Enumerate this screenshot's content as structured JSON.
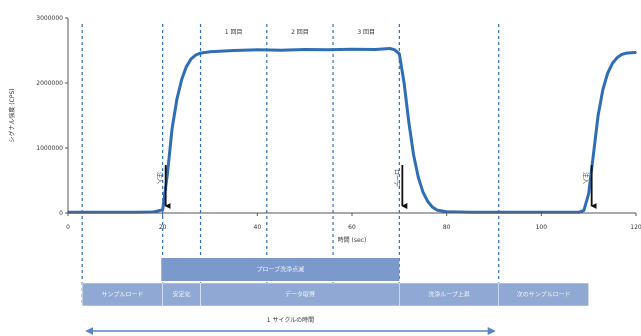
{
  "chart_data": {
    "type": "line",
    "title": "",
    "xlabel": "時間 (sec)",
    "ylabel": "シグナル強度 (CPS)",
    "xlim": [
      0,
      120
    ],
    "ylim": [
      0,
      3000000
    ],
    "x_ticks": [
      "0",
      "20",
      "40",
      "60",
      "80",
      "100",
      "120"
    ],
    "y_ticks": [
      "0",
      "1000000",
      "2000000",
      "3000000"
    ],
    "line_color": "#2f6db5",
    "dashed_markers_x": [
      3,
      20,
      28,
      42,
      56,
      70,
      91
    ],
    "read_labels": [
      {
        "text": "1 回目",
        "x": 35
      },
      {
        "text": "2 回目",
        "x": 49
      },
      {
        "text": "3 回目",
        "x": 63
      }
    ],
    "arrows": [
      {
        "label": "注入",
        "x": 20
      },
      {
        "label": "ローデ",
        "x": 70
      },
      {
        "label": "注入",
        "x": 110
      }
    ],
    "series": [
      {
        "points": [
          [
            0,
            10000
          ],
          [
            5,
            12000
          ],
          [
            10,
            11000
          ],
          [
            15,
            12000
          ],
          [
            18,
            15000
          ],
          [
            20,
            50000
          ],
          [
            21,
            600000
          ],
          [
            22,
            1300000
          ],
          [
            23,
            1750000
          ],
          [
            24,
            2050000
          ],
          [
            25,
            2250000
          ],
          [
            26,
            2370000
          ],
          [
            27,
            2430000
          ],
          [
            28,
            2460000
          ],
          [
            30,
            2480000
          ],
          [
            35,
            2500000
          ],
          [
            40,
            2510000
          ],
          [
            45,
            2505000
          ],
          [
            50,
            2515000
          ],
          [
            55,
            2510000
          ],
          [
            60,
            2520000
          ],
          [
            65,
            2515000
          ],
          [
            68,
            2530000
          ],
          [
            69,
            2510000
          ],
          [
            70,
            2450000
          ],
          [
            71,
            2000000
          ],
          [
            72,
            1400000
          ],
          [
            73,
            900000
          ],
          [
            74,
            550000
          ],
          [
            75,
            320000
          ],
          [
            76,
            180000
          ],
          [
            77,
            90000
          ],
          [
            78,
            45000
          ],
          [
            80,
            20000
          ],
          [
            85,
            12000
          ],
          [
            90,
            10000
          ],
          [
            95,
            10000
          ],
          [
            100,
            10000
          ],
          [
            105,
            10000
          ],
          [
            108,
            12000
          ],
          [
            109,
            40000
          ],
          [
            110,
            300000
          ],
          [
            111,
            900000
          ],
          [
            112,
            1500000
          ],
          [
            113,
            1900000
          ],
          [
            114,
            2150000
          ],
          [
            115,
            2300000
          ],
          [
            116,
            2390000
          ],
          [
            117,
            2440000
          ],
          [
            118,
            2460000
          ],
          [
            120,
            2470000
          ]
        ]
      }
    ],
    "phase_rows": [
      {
        "segments": [
          {
            "label": "サンプルロード",
            "from": 3,
            "to": 20
          },
          {
            "label": "安定化",
            "from": 20,
            "to": 28
          },
          {
            "label": "データ取得",
            "from": 28,
            "to": 70
          },
          {
            "label": "洗浄ループ上昇",
            "from": 70,
            "to": 91
          },
          {
            "label": "次のサンプルロード",
            "from": 91,
            "to": 110
          }
        ]
      }
    ],
    "upper_band": {
      "label": "プローブ洗浄点滅",
      "from": 14,
      "to": 70
    },
    "cycle": {
      "label": "1 サイクルの時間",
      "from": 3,
      "to": 91
    },
    "colors": {
      "band": "#8fa9d4",
      "band_dark": "#7c99cc",
      "axis": "#555555",
      "dash": "#2f6db5"
    }
  }
}
